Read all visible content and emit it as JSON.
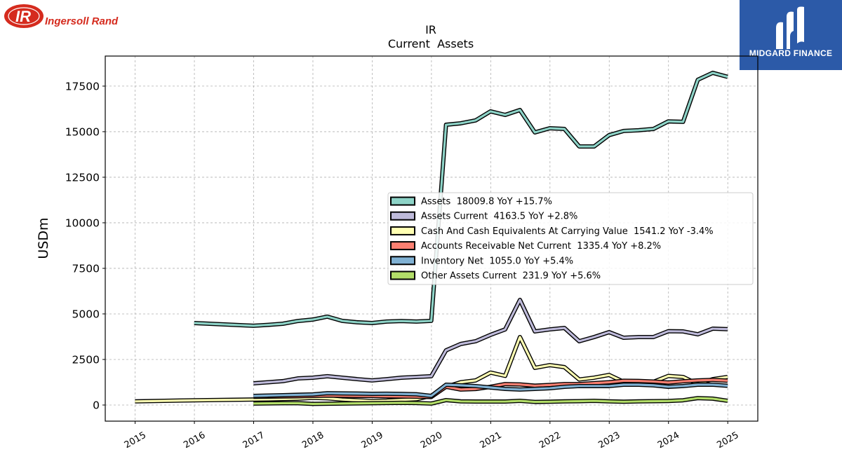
{
  "logos": {
    "ingersoll_rand": {
      "mark": "IR",
      "wordmark": "Ingersoll Rand",
      "color": "#d52b1e"
    },
    "midgard_finance": {
      "wordmark": "MIDGARD FINANCE",
      "color": "#2c5aa8"
    }
  },
  "chart_data": {
    "type": "line",
    "title": "IR",
    "subtitle": "Current  Assets",
    "xlabel": "",
    "ylabel": "USDm",
    "xlim": [
      "2014-07-01",
      "2025-07-05"
    ],
    "ylim": [
      -885,
      19150
    ],
    "x_ticks": [
      "2015",
      "2016",
      "2017",
      "2018",
      "2019",
      "2020",
      "2021",
      "2022",
      "2023",
      "2024",
      "2025"
    ],
    "y_ticks": [
      0,
      2500,
      5000,
      7500,
      10000,
      12500,
      15000,
      17500
    ],
    "grid": true,
    "legend_position": "center-right",
    "legend_yoy_label": "YoY",
    "x": [
      "2014-12-31",
      "2015-12-31",
      "2016-12-31",
      "2017-03-31",
      "2017-06-30",
      "2017-09-30",
      "2017-12-31",
      "2018-03-31",
      "2018-06-30",
      "2018-09-30",
      "2018-12-31",
      "2019-03-31",
      "2019-06-30",
      "2019-09-30",
      "2019-12-31",
      "2020-03-31",
      "2020-06-30",
      "2020-09-30",
      "2020-12-31",
      "2021-03-31",
      "2021-06-30",
      "2021-09-30",
      "2021-12-31",
      "2022-03-31",
      "2022-06-30",
      "2022-09-30",
      "2022-12-31",
      "2023-03-31",
      "2023-06-30",
      "2023-09-30",
      "2023-12-31",
      "2024-03-31",
      "2024-06-30",
      "2024-09-30",
      "2024-12-31"
    ],
    "series": [
      {
        "name": "Assets",
        "latest": "18009.8",
        "yoy": "+15.7%",
        "color": "#8dd3c7",
        "y": [
          null,
          4500,
          4350,
          4400,
          4460,
          4610,
          4690,
          4850,
          4620,
          4540,
          4500,
          4580,
          4610,
          4580,
          4620,
          15380,
          15460,
          15620,
          16115,
          15920,
          16190,
          14960,
          15190,
          15150,
          14190,
          14190,
          14810,
          15040,
          15080,
          15150,
          15566,
          15540,
          17850,
          18230,
          18009.8
        ]
      },
      {
        "name": "Assets Current",
        "latest": "4163.5",
        "yoy": "+2.8%",
        "color": "#bebada",
        "y": [
          null,
          null,
          1190,
          1250,
          1310,
          1460,
          1500,
          1580,
          1500,
          1420,
          1350,
          1420,
          1500,
          1540,
          1580,
          3000,
          3350,
          3500,
          3850,
          4150,
          5770,
          4040,
          4150,
          4230,
          3500,
          3730,
          4000,
          3690,
          3730,
          3730,
          4050,
          4040,
          3880,
          4190,
          4163.5
        ]
      },
      {
        "name": "Cash And Cash Equivalents At Carrying Value",
        "latest": "1541.2",
        "yoy": "-3.4%",
        "color": "#ffffb3",
        "y": [
          200,
          260,
          300,
          310,
          330,
          350,
          394,
          370,
          300,
          260,
          221,
          240,
          280,
          320,
          505,
          1000,
          1250,
          1350,
          1780,
          1600,
          3730,
          2040,
          2190,
          2080,
          1400,
          1500,
          1650,
          1270,
          1230,
          1270,
          1595,
          1540,
          1150,
          1420,
          1541.2
        ]
      },
      {
        "name": "Accounts Receivable Net Current",
        "latest": "1335.4",
        "yoy": "+8.2%",
        "color": "#fb8072",
        "y": [
          null,
          null,
          450,
          460,
          470,
          480,
          500,
          520,
          510,
          500,
          498,
          480,
          470,
          460,
          439,
          1000,
          850,
          880,
          1000,
          1150,
          1130,
          1060,
          1100,
          1150,
          1150,
          1200,
          1250,
          1330,
          1320,
          1290,
          1234,
          1300,
          1350,
          1380,
          1335.4
        ]
      },
      {
        "name": "Inventory Net",
        "latest": "1055.0",
        "yoy": "+5.4%",
        "color": "#80b1d3",
        "y": [
          null,
          null,
          500,
          520,
          540,
          560,
          580,
          650,
          640,
          630,
          615,
          620,
          610,
          590,
          500,
          1115,
          1080,
          1040,
          960,
          885,
          850,
          885,
          920,
          1000,
          1040,
          1040,
          1040,
          1115,
          1115,
          1080,
          1001,
          1040,
          1115,
          1115,
          1055.0
        ]
      },
      {
        "name": "Other Assets Current",
        "latest": "231.9",
        "yoy": "+5.6%",
        "color": "#b3de69",
        "y": [
          null,
          null,
          80,
          90,
          100,
          100,
          60,
          70,
          80,
          90,
          100,
          110,
          120,
          110,
          80,
          270,
          200,
          190,
          190,
          190,
          230,
          170,
          180,
          200,
          210,
          230,
          200,
          180,
          200,
          210,
          219.6,
          260,
          380,
          350,
          231.9
        ]
      }
    ]
  }
}
